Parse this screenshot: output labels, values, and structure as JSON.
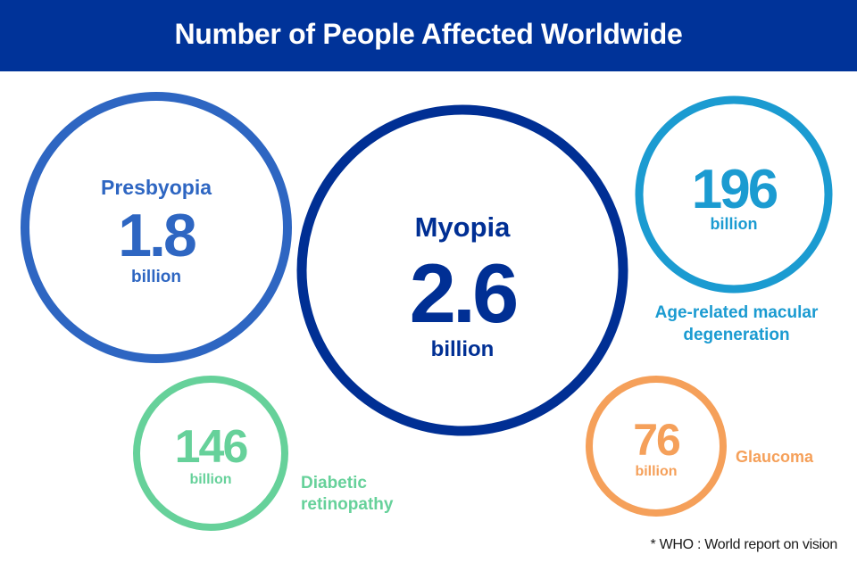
{
  "header": {
    "title": "Number of People Affected Worldwide",
    "background": "#003399"
  },
  "footnote": "* WHO : World report on vision",
  "chart_data": {
    "type": "bubble",
    "title": "Number of People Affected Worldwide",
    "series": [
      {
        "key": "presbyopia",
        "name": "Presbyopia",
        "value": "1.8",
        "unit": "billion",
        "color": "#2e66c2"
      },
      {
        "key": "myopia",
        "name": "Myopia",
        "value": "2.6",
        "unit": "billion",
        "color": "#002f94"
      },
      {
        "key": "amd",
        "name": "Age-related macular degeneration",
        "name_lines": [
          "Age-related macular",
          "degeneration"
        ],
        "value": "196",
        "unit": "billion",
        "color": "#1b9bd1"
      },
      {
        "key": "diabetic",
        "name": "Diabetic retinopathy",
        "name_lines": [
          "Diabetic",
          "retinopathy"
        ],
        "value": "146",
        "unit": "billion",
        "color": "#66d19a"
      },
      {
        "key": "glaucoma",
        "name": "Glaucoma",
        "value": "76",
        "unit": "billion",
        "color": "#f5a05a"
      }
    ]
  }
}
